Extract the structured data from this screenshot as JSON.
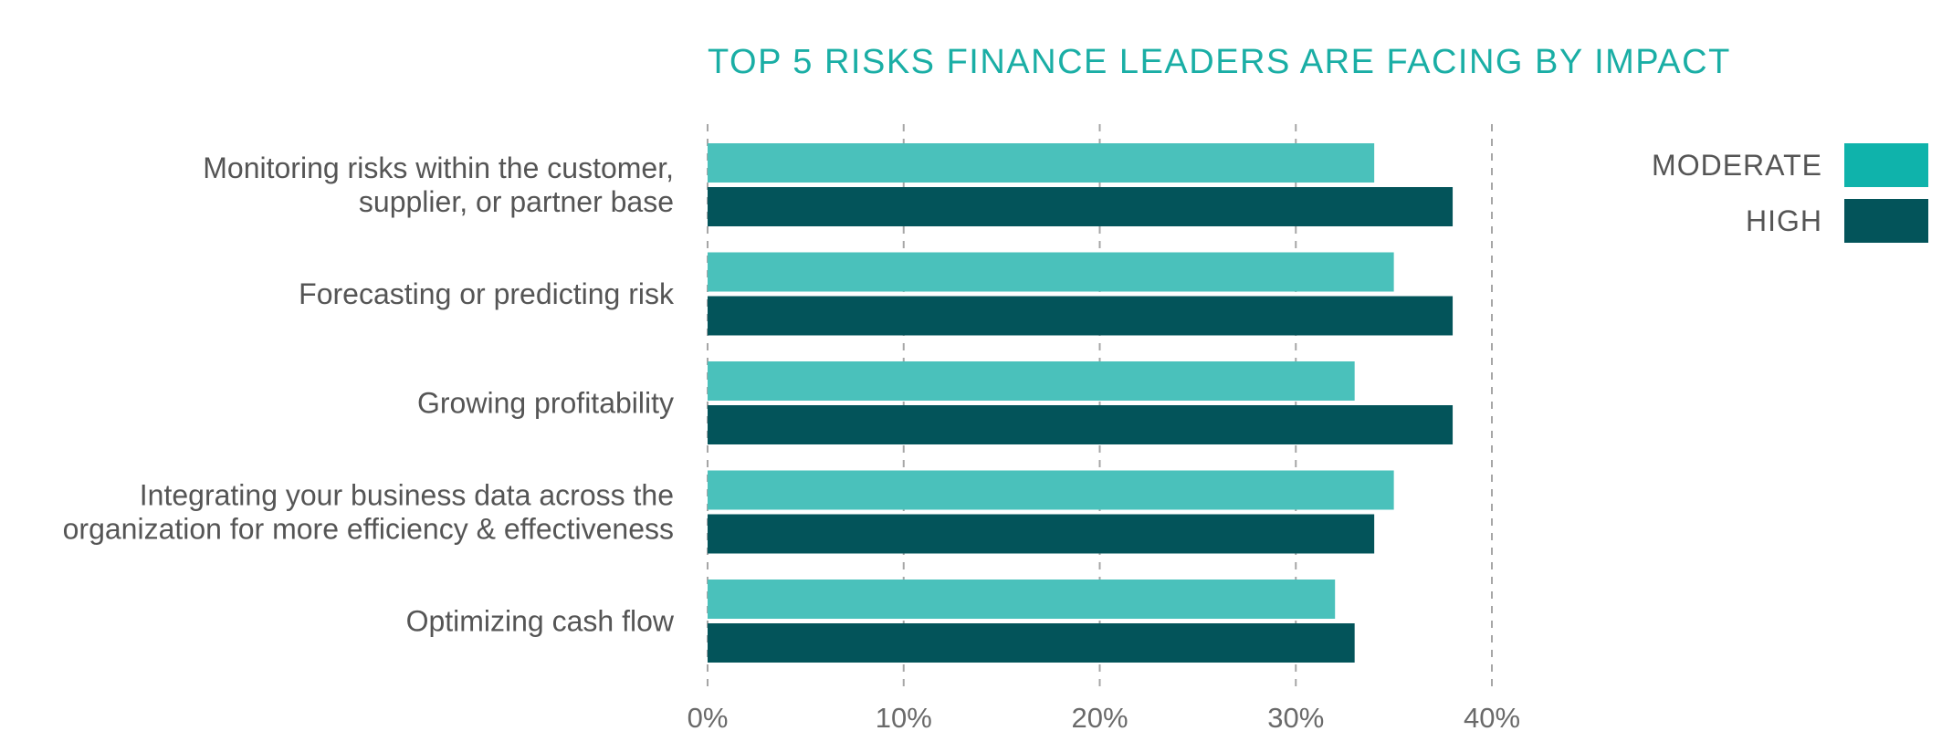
{
  "chart_data": {
    "type": "bar",
    "orientation": "horizontal",
    "title": "TOP 5 RISKS FINANCE LEADERS ARE FACING BY IMPACT",
    "categories": [
      [
        "Monitoring risks within the customer,",
        "supplier, or partner base"
      ],
      [
        "Forecasting or predicting risk"
      ],
      [
        "Growing profitability"
      ],
      [
        "Integrating your business data across the",
        "organization for more efficiency & effectiveness"
      ],
      [
        "Optimizing cash flow"
      ]
    ],
    "series": [
      {
        "name": "MODERATE",
        "values": [
          34,
          35,
          33,
          35,
          32
        ]
      },
      {
        "name": "HIGH",
        "values": [
          38,
          38,
          38,
          34,
          33
        ]
      }
    ],
    "xlim": [
      0,
      40
    ],
    "xticks": [
      "0%",
      "10%",
      "20%",
      "30%",
      "40%"
    ],
    "grid": true,
    "legend_position": "top-right"
  },
  "colors": {
    "title": "#1aaea5",
    "legend_moderate": "#0fb3ab",
    "legend_high": "#03545a",
    "bar_moderate": "#4ac1bb",
    "bar_high": "#03545a"
  }
}
